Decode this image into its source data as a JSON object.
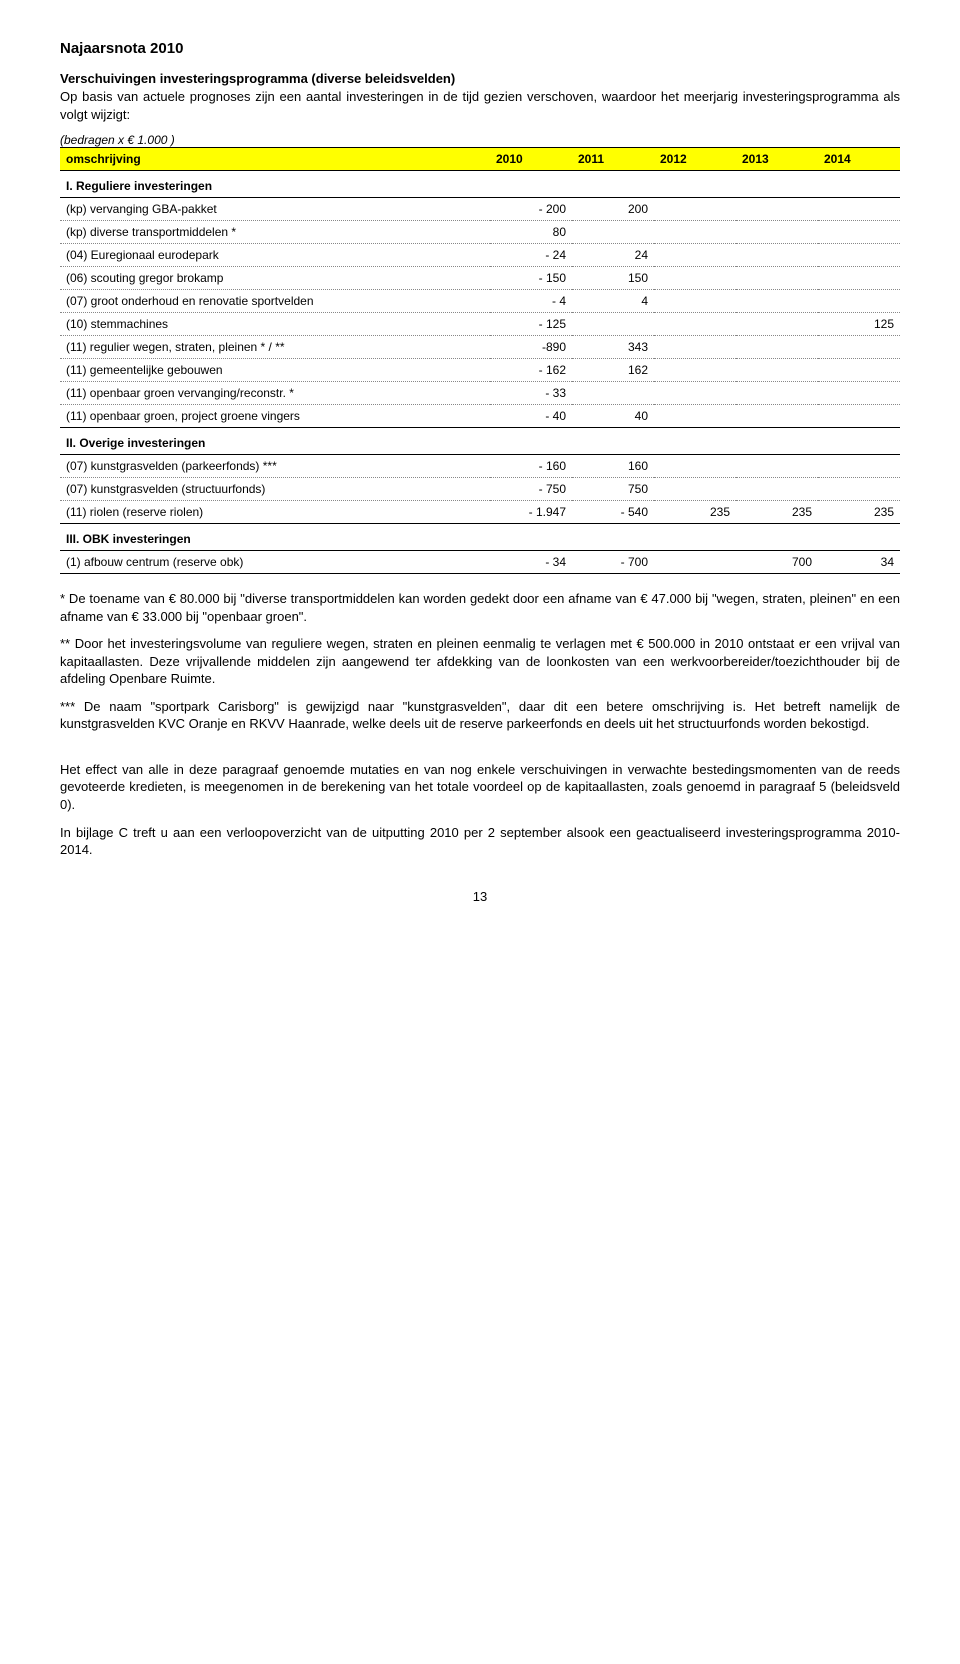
{
  "doc_title": "Najaarsnota 2010",
  "heading": "Verschuivingen investeringsprogramma (diverse beleidsvelden)",
  "intro": "Op basis van actuele prognoses zijn een aantal investeringen in de tijd gezien verschoven, waardoor het meerjarig investeringsprogramma als volgt wijzigt:",
  "bedragen": "(bedragen x € 1.000 )",
  "table": {
    "headers": [
      "omschrijving",
      "2010",
      "2011",
      "2012",
      "2013",
      "2014"
    ],
    "section1": "I. Reguliere investeringen",
    "rows1": [
      {
        "label": "(kp) vervanging GBA-pakket",
        "v": [
          "- 200",
          "200",
          "",
          "",
          ""
        ]
      },
      {
        "label": "(kp) diverse transportmiddelen *",
        "v": [
          "80",
          "",
          "",
          "",
          ""
        ]
      },
      {
        "label": "(04) Euregionaal eurodepark",
        "v": [
          "- 24",
          "24",
          "",
          "",
          ""
        ]
      },
      {
        "label": "(06) scouting gregor brokamp",
        "v": [
          "- 150",
          "150",
          "",
          "",
          ""
        ]
      },
      {
        "label": "(07) groot onderhoud en renovatie sportvelden",
        "v": [
          "- 4",
          "4",
          "",
          "",
          ""
        ]
      },
      {
        "label": "(10) stemmachines",
        "v": [
          "- 125",
          "",
          "",
          "",
          "125"
        ]
      },
      {
        "label": "(11) regulier wegen, straten, pleinen * / **",
        "v": [
          "-890",
          "343",
          "",
          "",
          ""
        ]
      },
      {
        "label": "(11) gemeentelijke gebouwen",
        "v": [
          "- 162",
          "162",
          "",
          "",
          ""
        ]
      },
      {
        "label": "(11) openbaar groen vervanging/reconstr. *",
        "v": [
          "- 33",
          "",
          "",
          "",
          ""
        ]
      },
      {
        "label": "(11) openbaar groen, project groene vingers",
        "v": [
          "- 40",
          "40",
          "",
          "",
          ""
        ]
      }
    ],
    "section2": "II. Overige investeringen",
    "rows2": [
      {
        "label": "(07) kunstgrasvelden (parkeerfonds) ***",
        "v": [
          "- 160",
          "160",
          "",
          "",
          ""
        ]
      },
      {
        "label": "(07) kunstgrasvelden (structuurfonds)",
        "v": [
          "- 750",
          "750",
          "",
          "",
          ""
        ]
      },
      {
        "label": "(11) riolen (reserve riolen)",
        "v": [
          "- 1.947",
          "- 540",
          "235",
          "235",
          "235"
        ]
      }
    ],
    "section3": "III. OBK investeringen",
    "rows3": [
      {
        "label": "(1) afbouw centrum (reserve obk)",
        "v": [
          "- 34",
          "- 700",
          "",
          "700",
          "34"
        ]
      }
    ]
  },
  "notes": [
    "* De toename van € 80.000 bij \"diverse transportmiddelen kan worden gedekt door een afname van € 47.000 bij \"wegen, straten, pleinen\" en een afname van € 33.000 bij \"openbaar groen\".",
    "** Door het investeringsvolume van reguliere wegen, straten en pleinen eenmalig te verlagen met € 500.000 in 2010 ontstaat er een vrijval van kapitaallasten. Deze vrijvallende middelen zijn aangewend ter afdekking van de loonkosten van een werkvoorbereider/toezichthouder bij de afdeling Openbare Ruimte.",
    "*** De naam \"sportpark Carisborg\" is gewijzigd naar \"kunstgrasvelden\", daar dit een betere omschrijving is. Het betreft namelijk de kunstgrasvelden KVC Oranje en RKVV Haanrade, welke deels uit de reserve parkeerfonds en deels uit het structuurfonds worden bekostigd."
  ],
  "para1": "Het effect van alle in deze paragraaf genoemde mutaties en van nog enkele verschuivingen in verwachte bestedingsmomenten van de reeds gevoteerde kredieten, is meegenomen in de berekening van het totale voordeel op de kapitaallasten, zoals genoemd in paragraaf 5 (beleidsveld 0).",
  "para2": "In bijlage C treft u aan een verloopoverzicht van de uitputting 2010 per 2 september alsook een geactualiseerd investeringsprogramma 2010-2014.",
  "pagenum": "13"
}
